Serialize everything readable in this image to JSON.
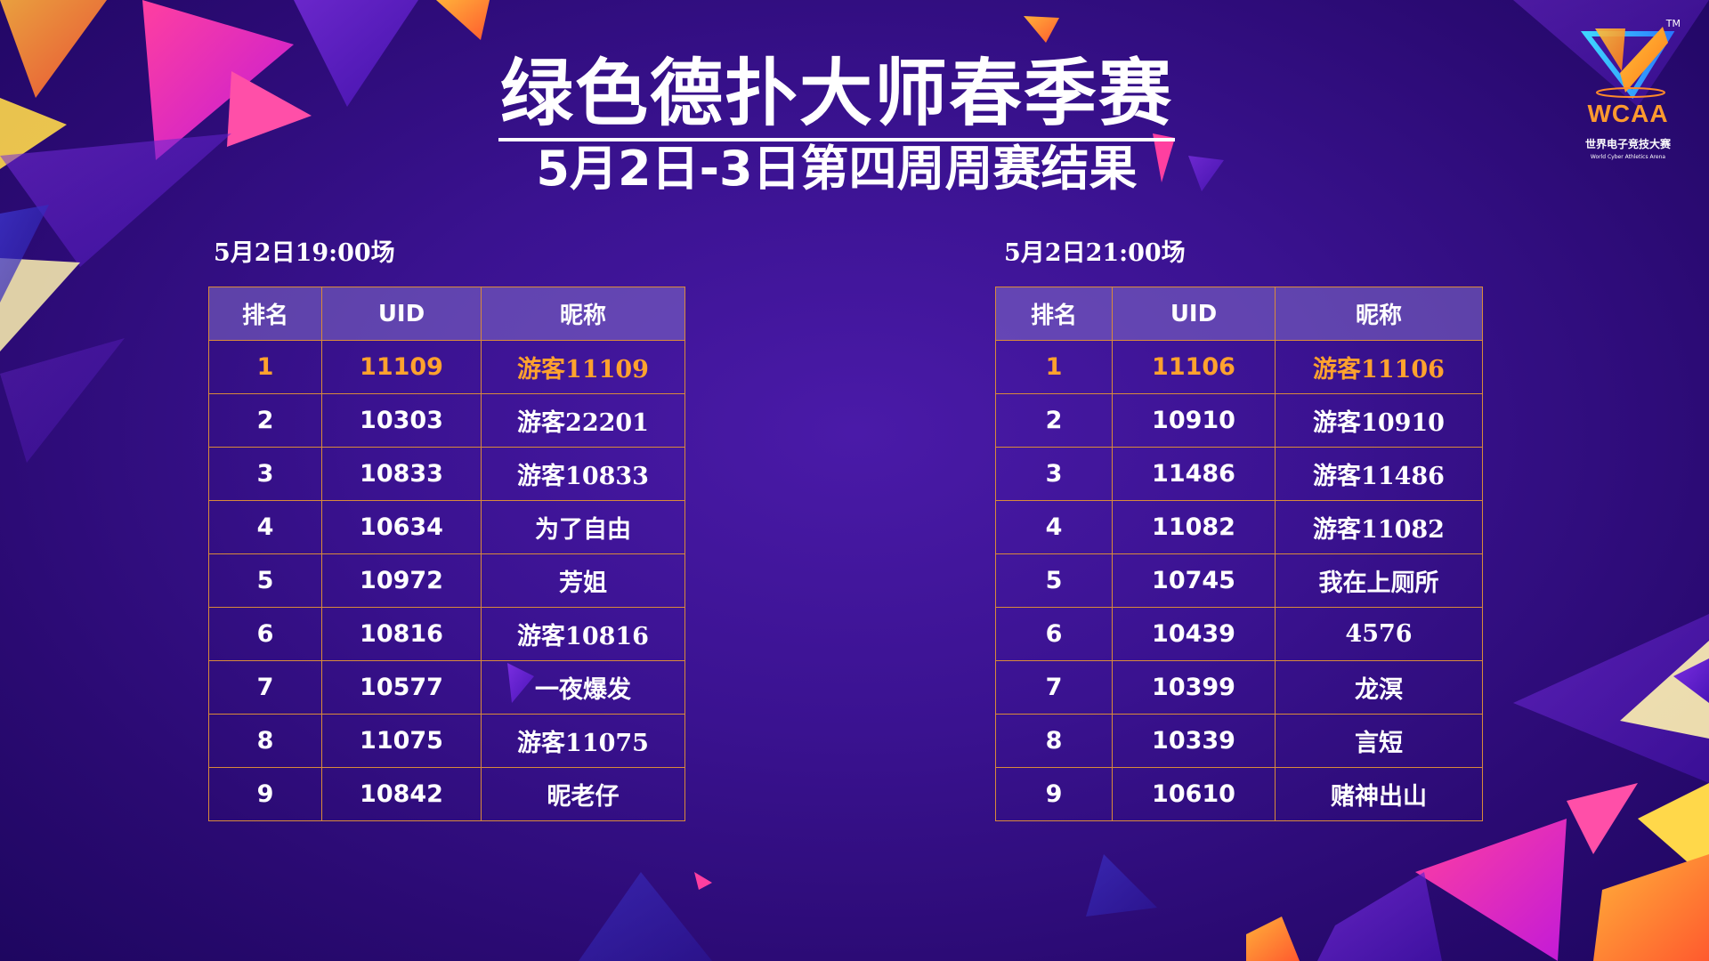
{
  "title": "绿色德扑大师春季赛",
  "subtitle": "5月2日-3日第四周周赛结果",
  "logo": {
    "tm": "TM",
    "name": "WCAA",
    "cn": "世界电子竞技大赛",
    "en": "World Cyber Athletics Arena"
  },
  "colors": {
    "background": "#3a1290",
    "highlight": "#ffa22e",
    "table_border": "#d98a3a",
    "header_fill": "#8a72c8"
  },
  "sessions": [
    {
      "label": "5月2日19:00场",
      "headers": [
        "排名",
        "UID",
        "昵称"
      ],
      "rows": [
        {
          "rank": "1",
          "uid": "11109",
          "nickname": "游客11109"
        },
        {
          "rank": "2",
          "uid": "10303",
          "nickname": "游客22201"
        },
        {
          "rank": "3",
          "uid": "10833",
          "nickname": "游客10833"
        },
        {
          "rank": "4",
          "uid": "10634",
          "nickname": "为了自由"
        },
        {
          "rank": "5",
          "uid": "10972",
          "nickname": "芳姐"
        },
        {
          "rank": "6",
          "uid": "10816",
          "nickname": "游客10816"
        },
        {
          "rank": "7",
          "uid": "10577",
          "nickname": "一夜爆发"
        },
        {
          "rank": "8",
          "uid": "11075",
          "nickname": "游客11075"
        },
        {
          "rank": "9",
          "uid": "10842",
          "nickname": "昵老仔"
        }
      ]
    },
    {
      "label": "5月2日21:00场",
      "headers": [
        "排名",
        "UID",
        "昵称"
      ],
      "rows": [
        {
          "rank": "1",
          "uid": "11106",
          "nickname": "游客11106"
        },
        {
          "rank": "2",
          "uid": "10910",
          "nickname": "游客10910"
        },
        {
          "rank": "3",
          "uid": "11486",
          "nickname": "游客11486"
        },
        {
          "rank": "4",
          "uid": "11082",
          "nickname": "游客11082"
        },
        {
          "rank": "5",
          "uid": "10745",
          "nickname": "我在上厕所"
        },
        {
          "rank": "6",
          "uid": "10439",
          "nickname": "4576"
        },
        {
          "rank": "7",
          "uid": "10399",
          "nickname": "龙溟"
        },
        {
          "rank": "8",
          "uid": "10339",
          "nickname": "言短"
        },
        {
          "rank": "9",
          "uid": "10610",
          "nickname": "赌神出山"
        }
      ]
    }
  ]
}
